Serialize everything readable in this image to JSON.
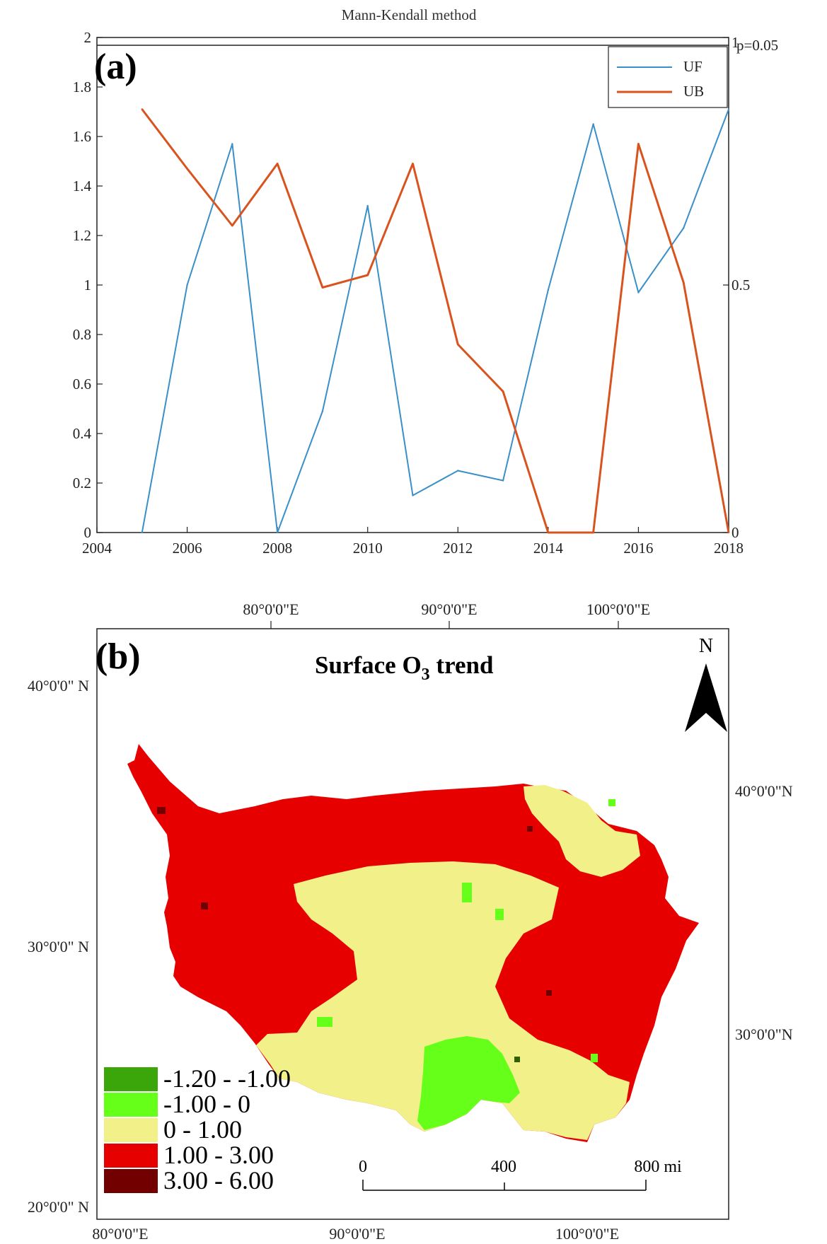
{
  "panel_a": {
    "panel_label": "(a)",
    "title": "Mann-Kendall method",
    "left_axis_ticks": [
      "0",
      "0.2",
      "0.4",
      "0.6",
      "0.8",
      "1",
      "1.2",
      "1.4",
      "1.6",
      "1.8",
      "2"
    ],
    "right_axis_ticks": [
      "0",
      "0.5",
      "1"
    ],
    "right_axis_top_label": "p=0.05",
    "x_ticks": [
      "2004",
      "2006",
      "2008",
      "2010",
      "2012",
      "2014",
      "2016",
      "2018"
    ],
    "legend": [
      {
        "label": "UF",
        "color": "#3a8fc9"
      },
      {
        "label": "UB",
        "color": "#d9531e"
      }
    ]
  },
  "panel_b": {
    "panel_label": "(b)",
    "title_prefix": "Surface O",
    "title_sub": "3",
    "title_suffix": " trend",
    "north_label": "N",
    "top_lon_labels": [
      "80°0'0\"E",
      "90°0'0\"E",
      "100°0'0\"E"
    ],
    "bottom_lon_labels": [
      "80°0'0\"E",
      "90°0'0\"E",
      "100°0'0\"E"
    ],
    "left_lat_labels": [
      "40°0'0\" N",
      "30°0'0\" N",
      "20°0'0\" N"
    ],
    "right_lat_labels": [
      "40°0'0\"N",
      "30°0'0\"N"
    ],
    "legend": [
      {
        "label": "-1.20 - -1.00",
        "color": "#3aa60a"
      },
      {
        "label": "-1.00 - 0",
        "color": "#66ff1a"
      },
      {
        "label": "0 - 1.00",
        "color": "#f2f088"
      },
      {
        "label": "1.00 - 3.00",
        "color": "#e60000"
      },
      {
        "label": "3.00 - 6.00",
        "color": "#730000"
      }
    ],
    "scale": {
      "labels": [
        "0",
        "400",
        "800 mi"
      ]
    }
  },
  "chart_data": [
    {
      "type": "line",
      "title": "Mann-Kendall method",
      "xlabel": "",
      "ylabel": "",
      "x": [
        2005,
        2006,
        2007,
        2008,
        2009,
        2010,
        2011,
        2012,
        2013,
        2014,
        2015,
        2016,
        2017,
        2018
      ],
      "series": [
        {
          "name": "UF",
          "color": "#3a8fc9",
          "values": [
            0,
            1.0,
            1.57,
            0,
            0.49,
            1.32,
            0.15,
            0.25,
            0.21,
            0.98,
            1.65,
            0.97,
            1.23,
            1.71
          ]
        },
        {
          "name": "UB",
          "color": "#d9531e",
          "values": [
            1.71,
            1.47,
            1.24,
            1.49,
            0.99,
            1.04,
            1.49,
            0.76,
            0.57,
            0,
            0,
            1.57,
            1.01,
            0
          ]
        }
      ],
      "xlim": [
        2004,
        2018
      ],
      "ylim": [
        0,
        2
      ],
      "y2lim": [
        0,
        1
      ],
      "legend_position": "top-right",
      "grid": false
    }
  ]
}
